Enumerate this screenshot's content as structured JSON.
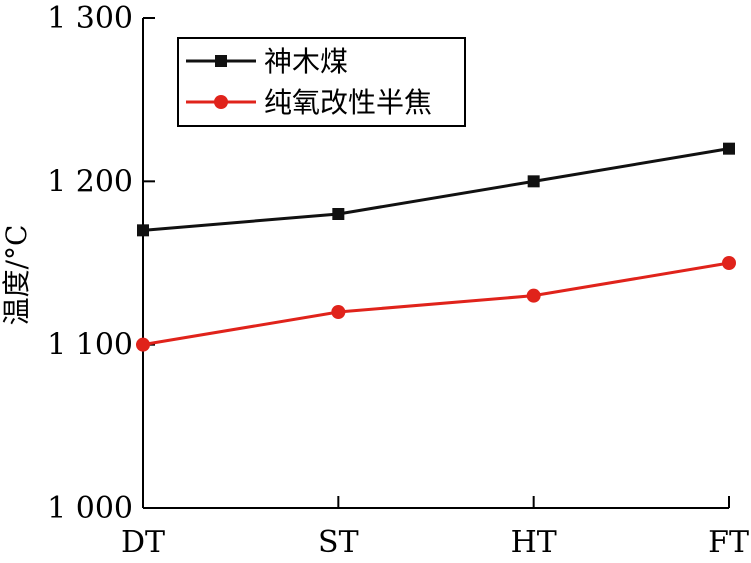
{
  "chart_data": {
    "type": "line",
    "title": "",
    "xlabel": "",
    "ylabel": "温度/°C",
    "categories": [
      "DT",
      "ST",
      "HT",
      "FT"
    ],
    "ylim": [
      1000,
      1300
    ],
    "yticks": [
      1000,
      1100,
      1200,
      1300
    ],
    "ytick_labels": [
      "1 000",
      "1 100",
      "1 200",
      "1 300"
    ],
    "grid": false,
    "legend_position": "top-left",
    "series": [
      {
        "name": "神木煤",
        "values": [
          1170,
          1180,
          1200,
          1220
        ],
        "color": "#111111",
        "marker": "square"
      },
      {
        "name": "纯氧改性半焦",
        "values": [
          1100,
          1120,
          1130,
          1150
        ],
        "color": "#e0231b",
        "marker": "circle"
      }
    ]
  }
}
